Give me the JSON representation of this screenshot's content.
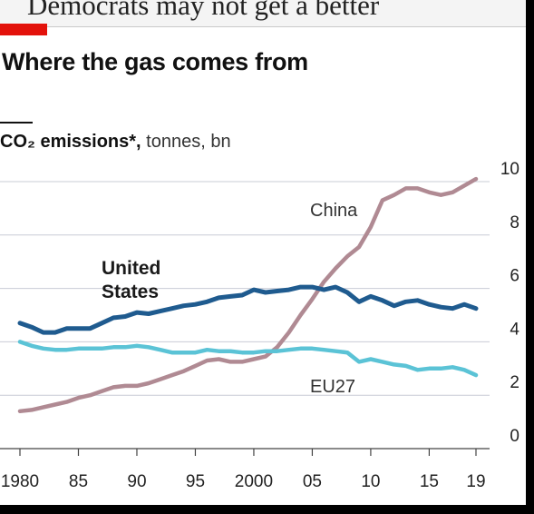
{
  "header": {
    "headline_fragment": "Democrats may not get a better"
  },
  "title": "Where the gas comes from",
  "subtitle": {
    "measure": "CO₂ emissions*,",
    "unit": "tonnes, bn"
  },
  "colors": {
    "united_states": "#1f5b8f",
    "china": "#b08a93",
    "eu27": "#5bc3d6",
    "grid": "#c9ccd6",
    "accent_red": "#e3120b"
  },
  "chart_data": {
    "type": "line",
    "title": "Where the gas comes from",
    "xlabel": "",
    "ylabel": "CO₂ emissions*, tonnes, bn",
    "x_tick_labels": [
      "1980",
      "85",
      "90",
      "95",
      "2000",
      "05",
      "10",
      "15",
      "19"
    ],
    "y_tick_labels": [
      "0",
      "2",
      "4",
      "6",
      "8",
      "10"
    ],
    "xlim": [
      1980,
      2019
    ],
    "ylim": [
      0,
      10
    ],
    "grid": true,
    "y_axis_side": "right",
    "x": [
      1980,
      1981,
      1982,
      1983,
      1984,
      1985,
      1986,
      1987,
      1988,
      1989,
      1990,
      1991,
      1992,
      1993,
      1994,
      1995,
      1996,
      1997,
      1998,
      1999,
      2000,
      2001,
      2002,
      2003,
      2004,
      2005,
      2006,
      2007,
      2008,
      2009,
      2010,
      2011,
      2012,
      2013,
      2014,
      2015,
      2016,
      2017,
      2018,
      2019
    ],
    "series": [
      {
        "name": "United States",
        "label": [
          "United",
          "States"
        ],
        "values": [
          4.7,
          4.55,
          4.35,
          4.35,
          4.5,
          4.5,
          4.5,
          4.7,
          4.9,
          4.95,
          5.1,
          5.05,
          5.15,
          5.25,
          5.35,
          5.4,
          5.5,
          5.65,
          5.7,
          5.75,
          5.95,
          5.85,
          5.9,
          5.95,
          6.05,
          6.05,
          5.95,
          6.05,
          5.85,
          5.5,
          5.7,
          5.55,
          5.35,
          5.5,
          5.55,
          5.4,
          5.3,
          5.25,
          5.4,
          5.25
        ]
      },
      {
        "name": "China",
        "values": [
          1.4,
          1.45,
          1.55,
          1.65,
          1.75,
          1.9,
          2.0,
          2.15,
          2.3,
          2.35,
          2.35,
          2.45,
          2.6,
          2.75,
          2.9,
          3.1,
          3.3,
          3.35,
          3.25,
          3.25,
          3.35,
          3.45,
          3.8,
          4.35,
          5.0,
          5.6,
          6.25,
          6.75,
          7.2,
          7.55,
          8.3,
          9.3,
          9.5,
          9.75,
          9.75,
          9.6,
          9.5,
          9.6,
          9.85,
          10.1
        ]
      },
      {
        "name": "EU27",
        "values": [
          4.0,
          3.85,
          3.75,
          3.7,
          3.7,
          3.75,
          3.75,
          3.75,
          3.8,
          3.8,
          3.85,
          3.8,
          3.7,
          3.6,
          3.6,
          3.6,
          3.7,
          3.65,
          3.65,
          3.6,
          3.6,
          3.65,
          3.65,
          3.7,
          3.75,
          3.75,
          3.7,
          3.65,
          3.6,
          3.25,
          3.35,
          3.25,
          3.15,
          3.1,
          2.95,
          3.0,
          3.0,
          3.05,
          2.95,
          2.75
        ]
      }
    ]
  }
}
